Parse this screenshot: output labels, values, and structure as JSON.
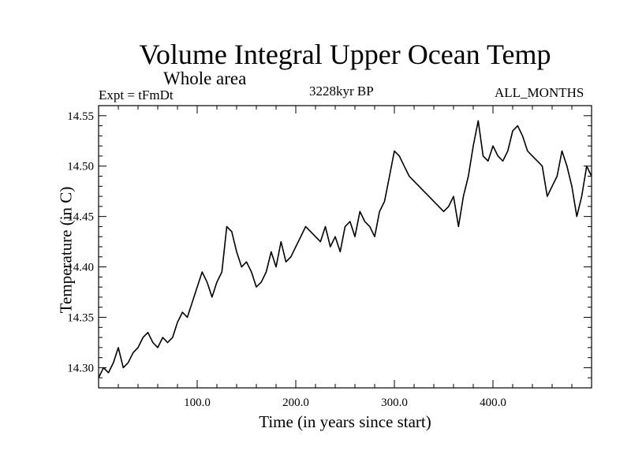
{
  "chart_data": {
    "type": "line",
    "title": "Volume Integral Upper Ocean Temp",
    "subtitle": "Whole area",
    "left_label": "Expt = tFmDt",
    "center_label": "3228kyr BP",
    "right_label": "ALL_MONTHS",
    "xlabel": "Time (in years since start)",
    "ylabel": "Temperature (in C)",
    "xlim": [
      0,
      500
    ],
    "ylim": [
      14.28,
      14.56
    ],
    "x_ticks": [
      100,
      200,
      300,
      400
    ],
    "x_tick_labels": [
      "100.0",
      "200.0",
      "300.0",
      "400.0"
    ],
    "y_ticks": [
      14.3,
      14.35,
      14.4,
      14.45,
      14.5,
      14.55
    ],
    "y_tick_labels": [
      "14.30",
      "14.35",
      "14.40",
      "14.45",
      "14.50",
      "14.55"
    ],
    "grid": false,
    "series": [
      {
        "name": "Volume Integral Upper Ocean Temp",
        "color": "#000000",
        "x": [
          0,
          5,
          10,
          15,
          20,
          25,
          30,
          35,
          40,
          45,
          50,
          55,
          60,
          65,
          70,
          75,
          80,
          85,
          90,
          95,
          100,
          105,
          110,
          115,
          120,
          125,
          130,
          135,
          140,
          145,
          150,
          155,
          160,
          165,
          170,
          175,
          180,
          185,
          190,
          195,
          200,
          205,
          210,
          215,
          220,
          225,
          230,
          235,
          240,
          245,
          250,
          255,
          260,
          265,
          270,
          275,
          280,
          285,
          290,
          295,
          300,
          305,
          310,
          315,
          320,
          325,
          330,
          335,
          340,
          345,
          350,
          355,
          360,
          365,
          370,
          375,
          380,
          385,
          390,
          395,
          400,
          405,
          410,
          415,
          420,
          425,
          430,
          435,
          440,
          445,
          450,
          455,
          460,
          465,
          470,
          475,
          480,
          485,
          490,
          495,
          500
        ],
        "y": [
          14.29,
          14.3,
          14.295,
          14.305,
          14.32,
          14.3,
          14.305,
          14.315,
          14.32,
          14.33,
          14.335,
          14.325,
          14.32,
          14.33,
          14.325,
          14.33,
          14.345,
          14.355,
          14.35,
          14.365,
          14.38,
          14.395,
          14.385,
          14.37,
          14.385,
          14.395,
          14.44,
          14.435,
          14.415,
          14.4,
          14.405,
          14.395,
          14.38,
          14.385,
          14.395,
          14.415,
          14.4,
          14.425,
          14.405,
          14.41,
          14.42,
          14.43,
          14.44,
          14.435,
          14.43,
          14.425,
          14.44,
          14.42,
          14.43,
          14.415,
          14.44,
          14.445,
          14.43,
          14.455,
          14.445,
          14.44,
          14.43,
          14.455,
          14.465,
          14.49,
          14.515,
          14.51,
          14.5,
          14.49,
          14.485,
          14.48,
          14.475,
          14.47,
          14.465,
          14.46,
          14.455,
          14.46,
          14.47,
          14.44,
          14.47,
          14.49,
          14.52,
          14.545,
          14.51,
          14.505,
          14.52,
          14.51,
          14.505,
          14.515,
          14.535,
          14.54,
          14.53,
          14.515,
          14.51,
          14.505,
          14.5,
          14.47,
          14.48,
          14.49,
          14.515,
          14.5,
          14.48,
          14.45,
          14.47,
          14.5,
          14.49
        ]
      }
    ]
  }
}
